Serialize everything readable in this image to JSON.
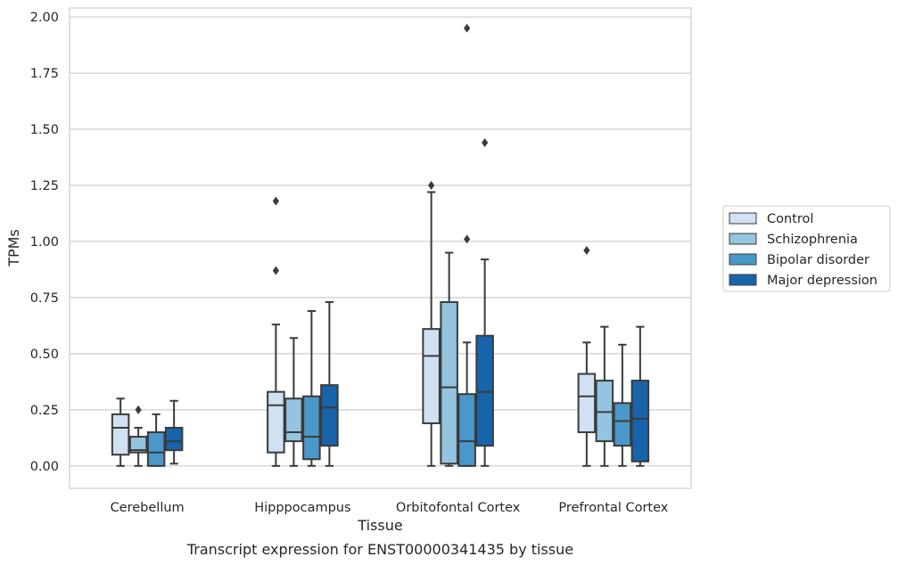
{
  "chart_data": {
    "type": "box",
    "title": "",
    "caption": "Transcript expression for ENST00000341435 by tissue",
    "xlabel": "Tissue",
    "ylabel": "TPMs",
    "ylim": [
      -0.1,
      2.04
    ],
    "yticks": [
      "0.00",
      "0.25",
      "0.50",
      "0.75",
      "1.00",
      "1.25",
      "1.50",
      "1.75",
      "2.00"
    ],
    "grid": true,
    "legend_position": "right",
    "categories": [
      "Cerebellum",
      "Hipppocampus",
      "Orbitofontal Cortex",
      "Prefrontal Cortex"
    ],
    "series": [
      {
        "name": "Control",
        "color": "#d0e1f2",
        "boxes": [
          {
            "whislo": 0.0,
            "q1": 0.05,
            "med": 0.17,
            "q3": 0.23,
            "whishi": 0.3,
            "fliers": []
          },
          {
            "whislo": 0.0,
            "q1": 0.06,
            "med": 0.27,
            "q3": 0.33,
            "whishi": 0.63,
            "fliers": [
              0.87,
              1.18
            ]
          },
          {
            "whislo": 0.0,
            "q1": 0.19,
            "med": 0.49,
            "q3": 0.61,
            "whishi": 1.22,
            "fliers": [
              1.25
            ]
          },
          {
            "whislo": 0.0,
            "q1": 0.15,
            "med": 0.31,
            "q3": 0.41,
            "whishi": 0.55,
            "fliers": [
              0.96
            ]
          }
        ]
      },
      {
        "name": "Schizophrenia",
        "color": "#94c4df",
        "boxes": [
          {
            "whislo": 0.0,
            "q1": 0.06,
            "med": 0.07,
            "q3": 0.13,
            "whishi": 0.17,
            "fliers": [
              0.25
            ]
          },
          {
            "whislo": 0.0,
            "q1": 0.11,
            "med": 0.15,
            "q3": 0.3,
            "whishi": 0.57,
            "fliers": []
          },
          {
            "whislo": 0.0,
            "q1": 0.01,
            "med": 0.35,
            "q3": 0.73,
            "whishi": 0.95,
            "fliers": []
          },
          {
            "whislo": 0.0,
            "q1": 0.11,
            "med": 0.24,
            "q3": 0.38,
            "whishi": 0.62,
            "fliers": []
          }
        ]
      },
      {
        "name": "Bipolar disorder",
        "color": "#4a98c9",
        "boxes": [
          {
            "whislo": 0.0,
            "q1": 0.0,
            "med": 0.06,
            "q3": 0.15,
            "whishi": 0.23,
            "fliers": []
          },
          {
            "whislo": 0.0,
            "q1": 0.03,
            "med": 0.13,
            "q3": 0.31,
            "whishi": 0.69,
            "fliers": []
          },
          {
            "whislo": 0.0,
            "q1": 0.0,
            "med": 0.11,
            "q3": 0.32,
            "whishi": 0.55,
            "fliers": [
              1.01,
              1.95
            ]
          },
          {
            "whislo": 0.0,
            "q1": 0.09,
            "med": 0.2,
            "q3": 0.28,
            "whishi": 0.54,
            "fliers": []
          }
        ]
      },
      {
        "name": "Major depression",
        "color": "#1764ab",
        "boxes": [
          {
            "whislo": 0.01,
            "q1": 0.07,
            "med": 0.11,
            "q3": 0.17,
            "whishi": 0.29,
            "fliers": []
          },
          {
            "whislo": 0.0,
            "q1": 0.09,
            "med": 0.26,
            "q3": 0.36,
            "whishi": 0.73,
            "fliers": []
          },
          {
            "whislo": 0.0,
            "q1": 0.09,
            "med": 0.33,
            "q3": 0.58,
            "whishi": 0.92,
            "fliers": [
              1.44
            ]
          },
          {
            "whislo": 0.0,
            "q1": 0.02,
            "med": 0.21,
            "q3": 0.38,
            "whishi": 0.62,
            "fliers": []
          }
        ]
      }
    ]
  }
}
